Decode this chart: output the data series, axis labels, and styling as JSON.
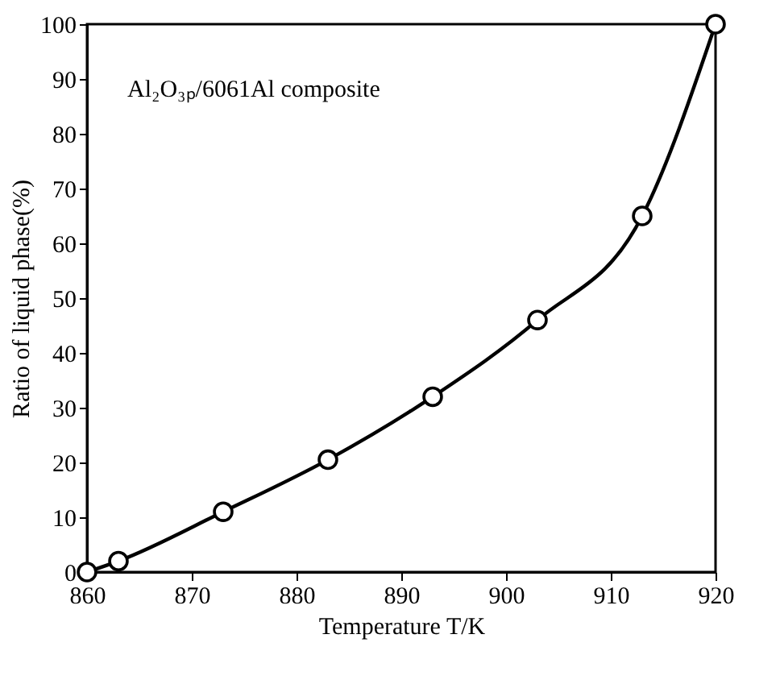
{
  "chart_data": {
    "type": "line",
    "xlabel": "Temperature T/K",
    "ylabel": "Ratio of liquid phase(%)",
    "annotations": [
      "Al₂O₃ₚ/6061Al composite"
    ],
    "x": [
      860,
      863,
      873,
      883,
      893,
      903,
      913,
      920
    ],
    "series": [
      {
        "color": "#000000",
        "values": [
          0,
          2,
          11,
          20.5,
          32,
          46,
          65,
          100
        ]
      }
    ],
    "xlim": [
      860,
      920
    ],
    "xticks": [
      860,
      870,
      880,
      890,
      900,
      910,
      920
    ],
    "ylim": [
      0,
      100
    ],
    "yticks": [
      0,
      10,
      20,
      30,
      40,
      50,
      60,
      70,
      80,
      90,
      100
    ],
    "grid": false,
    "marker": "circle",
    "line_style": "solid"
  }
}
